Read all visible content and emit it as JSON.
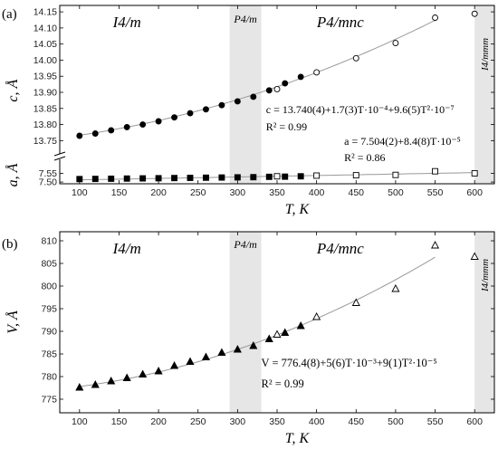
{
  "chart_data": [
    {
      "type": "scatter",
      "panel_label": "(a)",
      "ylabel_top": "c, Å",
      "ylabel_bottom": "a, Å",
      "xlabel": "T, K",
      "xlim": [
        75,
        625
      ],
      "xticks": [
        100,
        150,
        200,
        250,
        300,
        350,
        400,
        450,
        500,
        550,
        600
      ],
      "ylim_top": [
        13.72,
        14.17
      ],
      "yticks_top": [
        "13.75",
        "13.80",
        "13.85",
        "13.90",
        "13.95",
        "14.00",
        "14.05",
        "14.10",
        "14.15"
      ],
      "ylim_bottom": [
        7.49,
        7.61
      ],
      "yticks_bottom": [
        "7.50",
        "7.55"
      ],
      "regions": [
        {
          "label": "I4/m",
          "x_from": 75,
          "x_to": 290,
          "shaded": false
        },
        {
          "label": "P4/m",
          "x_from": 290,
          "x_to": 330,
          "shaded": true
        },
        {
          "label": "P4/mnc",
          "x_from": 330,
          "x_to": 600,
          "shaded": false
        },
        {
          "label": "I4/mmm",
          "x_from": 600,
          "x_to": 625,
          "shaded": true
        }
      ],
      "series": [
        {
          "name": "c",
          "marker": "filled-circle",
          "x": [
            100,
            120,
            140,
            160,
            180,
            200,
            220,
            240,
            260,
            280,
            300,
            320,
            340,
            360,
            380
          ],
          "values": [
            13.765,
            13.772,
            13.782,
            13.792,
            13.8,
            13.81,
            13.822,
            13.835,
            13.847,
            13.86,
            13.872,
            13.886,
            13.906,
            13.928,
            13.948
          ]
        },
        {
          "name": "c",
          "marker": "open-circle",
          "x": [
            350,
            400,
            450,
            500,
            550,
            600
          ],
          "values": [
            13.91,
            13.962,
            14.006,
            14.053,
            14.132,
            14.144
          ]
        },
        {
          "name": "a",
          "marker": "filled-square",
          "x": [
            100,
            120,
            140,
            160,
            180,
            200,
            220,
            240,
            260,
            280,
            300,
            320,
            340,
            360,
            380
          ],
          "values": [
            7.517,
            7.518,
            7.519,
            7.52,
            7.521,
            7.522,
            7.523,
            7.524,
            7.525,
            7.526,
            7.527,
            7.528,
            7.53,
            7.531,
            7.533
          ]
        },
        {
          "name": "a",
          "marker": "open-square",
          "x": [
            350,
            400,
            450,
            500,
            550,
            600
          ],
          "values": [
            7.533,
            7.537,
            7.539,
            7.541,
            7.562,
            7.55
          ]
        }
      ],
      "equations": [
        {
          "text": "c = 13.740(4)+1.7(3)T·10⁻⁴+9.6(5)T²·10⁻⁷",
          "r2": "R² = 0.99"
        },
        {
          "text": "a = 7.504(2)+8.4(8)T·10⁻⁵",
          "r2": "R² = 0.86"
        }
      ]
    },
    {
      "type": "scatter",
      "panel_label": "(b)",
      "ylabel": "V, Å",
      "xlabel": "T, K",
      "xlim": [
        75,
        625
      ],
      "xticks": [
        100,
        150,
        200,
        250,
        300,
        350,
        400,
        450,
        500,
        550,
        600
      ],
      "ylim": [
        772,
        812
      ],
      "yticks": [
        775,
        780,
        785,
        790,
        795,
        800,
        805,
        810
      ],
      "regions": [
        {
          "label": "I4/m",
          "x_from": 75,
          "x_to": 290,
          "shaded": false
        },
        {
          "label": "P4/m",
          "x_from": 290,
          "x_to": 330,
          "shaded": true
        },
        {
          "label": "P4/mnc",
          "x_from": 330,
          "x_to": 600,
          "shaded": false
        },
        {
          "label": "I4/mmm",
          "x_from": 600,
          "x_to": 625,
          "shaded": true
        }
      ],
      "series": [
        {
          "name": "V",
          "marker": "filled-triangle",
          "x": [
            100,
            120,
            140,
            160,
            180,
            200,
            220,
            240,
            260,
            280,
            300,
            320,
            340,
            360,
            380
          ],
          "values": [
            777.6,
            778.2,
            779.0,
            779.7,
            780.5,
            781.2,
            782.4,
            783.3,
            784.3,
            785.3,
            786.0,
            786.8,
            788.3,
            789.7,
            791.2
          ]
        },
        {
          "name": "V",
          "marker": "open-triangle",
          "x": [
            350,
            400,
            450,
            500,
            550,
            600
          ],
          "values": [
            789.3,
            793.2,
            796.3,
            799.4,
            809.0,
            806.5
          ]
        }
      ],
      "equations": [
        {
          "text": "V = 776.4(8)+5(6)T·10⁻³+9(1)T²·10⁻⁵",
          "r2": "R² = 0.99"
        }
      ]
    }
  ]
}
